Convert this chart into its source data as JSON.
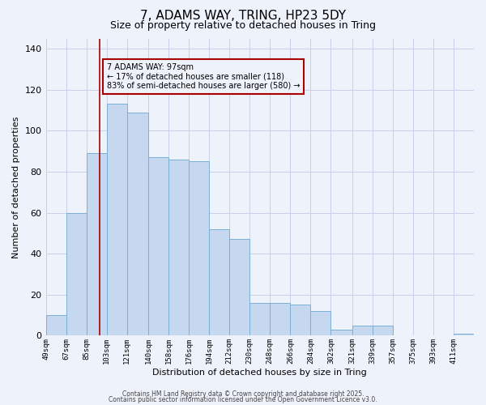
{
  "title": "7, ADAMS WAY, TRING, HP23 5DY",
  "subtitle": "Size of property relative to detached houses in Tring",
  "xlabel": "Distribution of detached houses by size in Tring",
  "ylabel": "Number of detached properties",
  "bar_labels": [
    "49sqm",
    "67sqm",
    "85sqm",
    "103sqm",
    "121sqm",
    "140sqm",
    "158sqm",
    "176sqm",
    "194sqm",
    "212sqm",
    "230sqm",
    "248sqm",
    "266sqm",
    "284sqm",
    "302sqm",
    "321sqm",
    "339sqm",
    "357sqm",
    "375sqm",
    "393sqm",
    "411sqm"
  ],
  "bar_values": [
    10,
    60,
    89,
    113,
    109,
    87,
    86,
    85,
    52,
    47,
    16,
    16,
    15,
    12,
    3,
    5,
    5,
    0,
    0,
    0,
    1
  ],
  "bar_color": "#c5d8f0",
  "bar_edge_color": "#7bafd4",
  "background_color": "#eef2fb",
  "grid_color": "#c8d0e8",
  "annotation_box_text": "7 ADAMS WAY: 97sqm\n← 17% of detached houses are smaller (118)\n83% of semi-detached houses are larger (580) →",
  "annotation_box_color": "#aa0000",
  "vline_x": 97,
  "vline_color": "#aa0000",
  "ylim": [
    0,
    145
  ],
  "yticks": [
    0,
    20,
    40,
    60,
    80,
    100,
    120,
    140
  ],
  "footer1": "Contains HM Land Registry data © Crown copyright and database right 2025.",
  "footer2": "Contains public sector information licensed under the Open Government Licence v3.0.",
  "bin_edges": [
    49,
    67,
    85,
    103,
    121,
    140,
    158,
    176,
    194,
    212,
    230,
    248,
    266,
    284,
    302,
    321,
    339,
    357,
    375,
    393,
    411,
    429
  ]
}
